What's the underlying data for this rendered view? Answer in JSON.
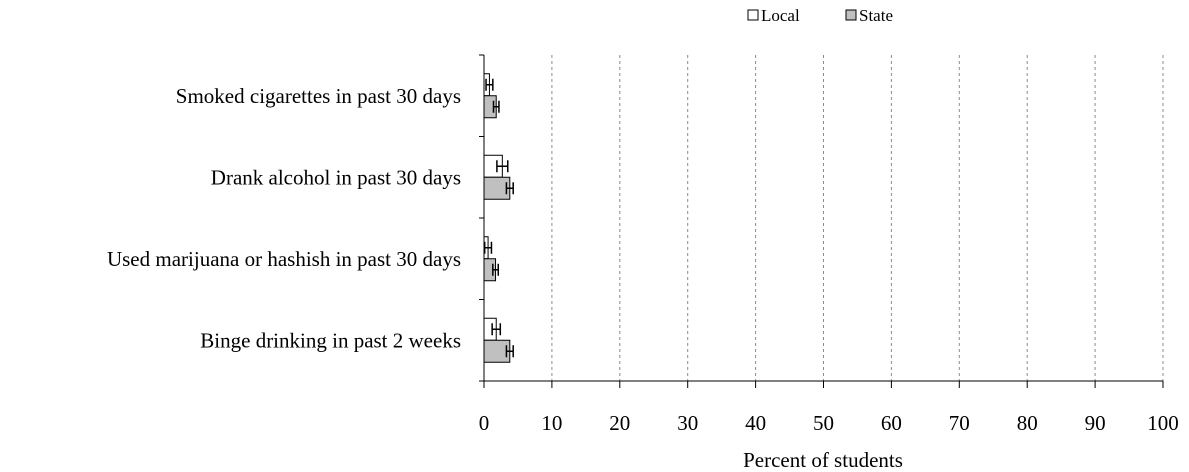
{
  "chart_data": {
    "type": "bar",
    "orientation": "horizontal",
    "categories": [
      "Smoked cigarettes in past 30 days",
      "Drank alcohol in past 30 days",
      "Used marijuana or hashish in past 30 days",
      "Binge drinking in past 2 weeks"
    ],
    "series": [
      {
        "name": "Local",
        "color": "#ffffff",
        "values": [
          0.8,
          2.7,
          0.6,
          1.8
        ],
        "error": [
          0.5,
          0.8,
          0.5,
          0.6
        ]
      },
      {
        "name": "State",
        "color": "#c0c0c0",
        "values": [
          1.8,
          3.8,
          1.7,
          3.8
        ],
        "error": [
          0.4,
          0.5,
          0.4,
          0.5
        ]
      }
    ],
    "xlabel": "Percent of students",
    "xlim": [
      0,
      100
    ],
    "xticks": [
      0,
      10,
      20,
      30,
      40,
      50,
      60,
      70,
      80,
      90,
      100
    ],
    "grid": "vertical dashed",
    "legend_position": "top-right"
  }
}
